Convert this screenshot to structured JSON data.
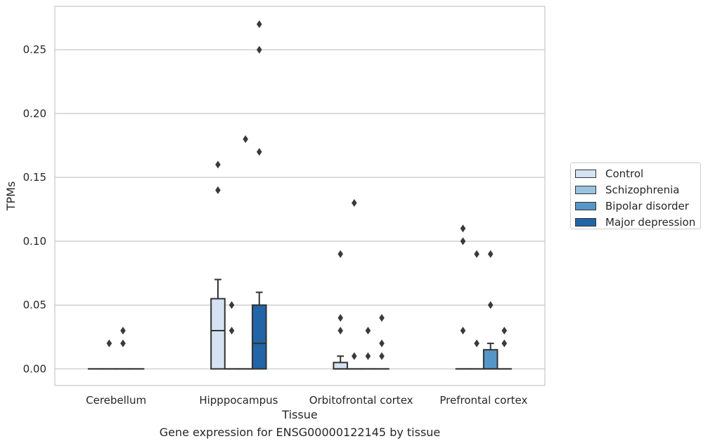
{
  "chart_data": {
    "type": "box",
    "xlabel": "Tissue",
    "ylabel": "TPMs",
    "caption": "Gene expression for ENSG00000122145 by tissue",
    "ylim": [
      -0.013,
      0.284
    ],
    "yticks": [
      "0.00",
      "0.05",
      "0.10",
      "0.15",
      "0.20",
      "0.25"
    ],
    "ytick_values": [
      0,
      0.05,
      0.1,
      0.15,
      0.2,
      0.25
    ],
    "grid": "horizontal",
    "legend_position": "right",
    "categories": [
      "Cerebellum",
      "Hipppocampus",
      "Orbitofrontal cortex",
      "Prefrontal cortex"
    ],
    "series": [
      {
        "name": "Control",
        "color": "#d4e2f2",
        "boxes": [
          {
            "q1": 0,
            "median": 0,
            "q3": 0,
            "whisker_low": 0,
            "whisker_high": 0,
            "outliers": []
          },
          {
            "q1": 0,
            "median": 0.03,
            "q3": 0.055,
            "whisker_low": 0,
            "whisker_high": 0.07,
            "outliers": [
              0.14,
              0.16
            ]
          },
          {
            "q1": 0,
            "median": 0,
            "q3": 0.005,
            "whisker_low": 0,
            "whisker_high": 0.01,
            "outliers": [
              0.03,
              0.04,
              0.09
            ]
          },
          {
            "q1": 0,
            "median": 0,
            "q3": 0,
            "whisker_low": 0,
            "whisker_high": 0,
            "outliers": [
              0.03,
              0.1,
              0.11
            ]
          }
        ]
      },
      {
        "name": "Schizophrenia",
        "color": "#9ac4de",
        "boxes": [
          {
            "q1": 0,
            "median": 0,
            "q3": 0,
            "whisker_low": 0,
            "whisker_high": 0,
            "outliers": [
              0.02
            ]
          },
          {
            "q1": 0,
            "median": 0,
            "q3": 0,
            "whisker_low": 0,
            "whisker_high": 0,
            "outliers": [
              0.03,
              0.05
            ]
          },
          {
            "q1": 0,
            "median": 0,
            "q3": 0,
            "whisker_low": 0,
            "whisker_high": 0,
            "outliers": [
              0.01,
              0.13
            ]
          },
          {
            "q1": 0,
            "median": 0,
            "q3": 0,
            "whisker_low": 0,
            "whisker_high": 0,
            "outliers": [
              0.02,
              0.09
            ]
          }
        ]
      },
      {
        "name": "Bipolar disorder",
        "color": "#5596c8",
        "boxes": [
          {
            "q1": 0,
            "median": 0,
            "q3": 0,
            "whisker_low": 0,
            "whisker_high": 0,
            "outliers": [
              0.02,
              0.03
            ]
          },
          {
            "q1": 0,
            "median": 0,
            "q3": 0,
            "whisker_low": 0,
            "whisker_high": 0,
            "outliers": [
              0.18
            ]
          },
          {
            "q1": 0,
            "median": 0,
            "q3": 0,
            "whisker_low": 0,
            "whisker_high": 0,
            "outliers": [
              0.01,
              0.03
            ]
          },
          {
            "q1": 0,
            "median": 0,
            "q3": 0.015,
            "whisker_low": 0,
            "whisker_high": 0.02,
            "outliers": [
              0.05,
              0.09
            ]
          }
        ]
      },
      {
        "name": "Major depression",
        "color": "#2164a8",
        "boxes": [
          {
            "q1": 0,
            "median": 0,
            "q3": 0,
            "whisker_low": 0,
            "whisker_high": 0,
            "outliers": []
          },
          {
            "q1": 0,
            "median": 0.02,
            "q3": 0.05,
            "whisker_low": 0,
            "whisker_high": 0.06,
            "outliers": [
              0.17,
              0.25,
              0.27
            ]
          },
          {
            "q1": 0,
            "median": 0,
            "q3": 0,
            "whisker_low": 0,
            "whisker_high": 0,
            "outliers": [
              0.01,
              0.02,
              0.04
            ]
          },
          {
            "q1": 0,
            "median": 0,
            "q3": 0,
            "whisker_low": 0,
            "whisker_high": 0,
            "outliers": [
              0.02,
              0.03
            ]
          }
        ]
      }
    ]
  }
}
